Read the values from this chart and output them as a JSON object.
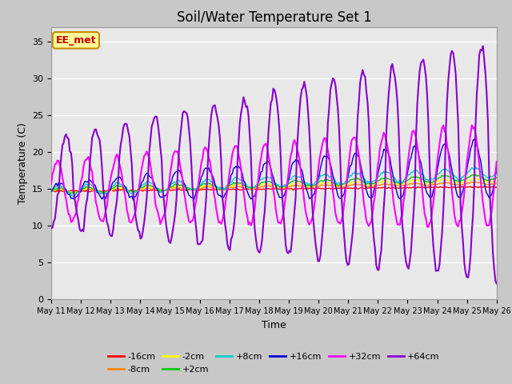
{
  "title": "Soil/Water Temperature Set 1",
  "xlabel": "Time",
  "ylabel": "Temperature (C)",
  "ylim": [
    0,
    37
  ],
  "xlim": [
    0,
    15
  ],
  "yticks": [
    0,
    5,
    10,
    15,
    20,
    25,
    30,
    35
  ],
  "x_labels": [
    "May 11",
    "May 12",
    "May 13",
    "May 14",
    "May 15",
    "May 16",
    "May 17",
    "May 18",
    "May 19",
    "May 20",
    "May 21",
    "May 22",
    "May 23",
    "May 24",
    "May 25",
    "May 26"
  ],
  "series_colors": [
    "#ff0000",
    "#ff8800",
    "#ffff00",
    "#00cc00",
    "#00cccc",
    "#0000cc",
    "#ff00ff",
    "#8800cc"
  ],
  "series_labels": [
    "-16cm",
    "-8cm",
    "-2cm",
    "+2cm",
    "+8cm",
    "+16cm",
    "+32cm",
    "+64cm"
  ],
  "annotation_text": "EE_met",
  "annotation_color": "#cc0000",
  "annotation_bg": "#ffff99",
  "annotation_border": "#cc8800",
  "fig_bg": "#c8c8c8",
  "plot_bg": "#e8e8e8",
  "grid_color": "#ffffff",
  "title_fontsize": 12,
  "label_fontsize": 9,
  "tick_fontsize": 8,
  "legend_fontsize": 8
}
